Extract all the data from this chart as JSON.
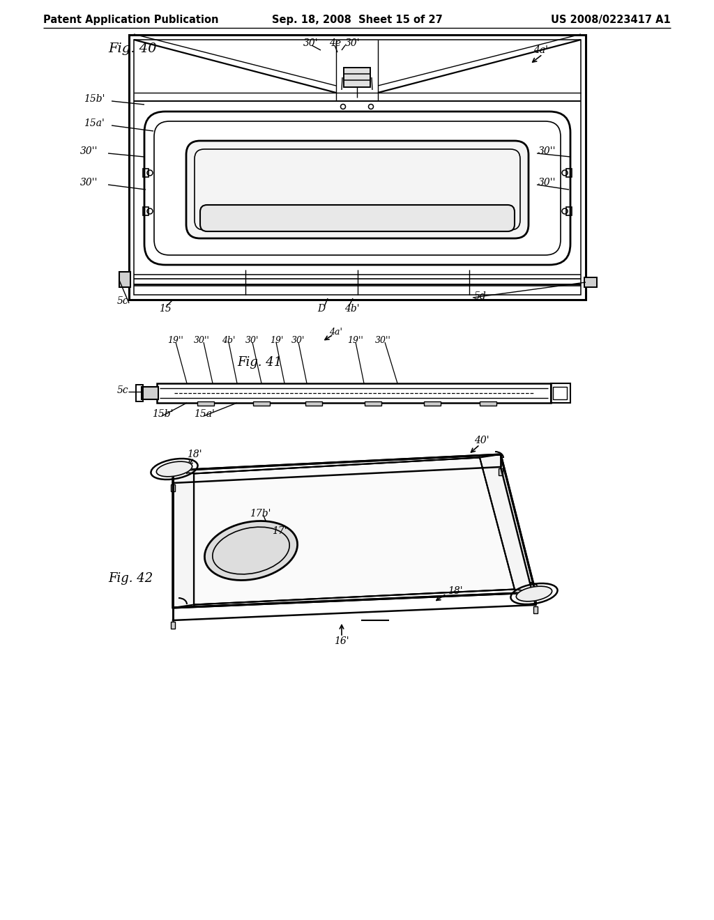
{
  "header_left": "Patent Application Publication",
  "header_center": "Sep. 18, 2008  Sheet 15 of 27",
  "header_right": "US 2008/0223417 A1",
  "bg": "#ffffff",
  "lc": "#000000"
}
